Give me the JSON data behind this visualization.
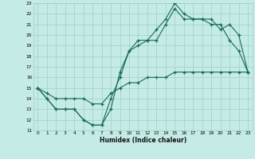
{
  "xlabel": "Humidex (Indice chaleur)",
  "xlim": [
    -0.5,
    23.5
  ],
  "ylim": [
    11,
    23
  ],
  "xticks": [
    0,
    1,
    2,
    3,
    4,
    5,
    6,
    7,
    8,
    9,
    10,
    11,
    12,
    13,
    14,
    15,
    16,
    17,
    18,
    19,
    20,
    21,
    22,
    23
  ],
  "yticks": [
    11,
    12,
    13,
    14,
    15,
    16,
    17,
    18,
    19,
    20,
    21,
    22,
    23
  ],
  "bg_color": "#c5ebe6",
  "grid_color": "#9dcdc8",
  "line_color": "#1a6b5a",
  "line1_x": [
    0,
    1,
    2,
    3,
    4,
    5,
    6,
    7,
    8,
    9,
    10,
    11,
    12,
    13,
    14,
    15,
    16,
    17,
    18,
    19,
    20,
    21,
    22,
    23
  ],
  "line1_y": [
    15,
    14,
    13,
    13,
    13,
    12,
    11.5,
    11.5,
    13,
    16.5,
    18.5,
    19.5,
    19.5,
    20.5,
    21.5,
    23,
    22,
    21.5,
    21.5,
    21,
    21,
    19.5,
    18.5,
    16.5
  ],
  "line2_x": [
    0,
    1,
    2,
    3,
    4,
    5,
    6,
    7,
    8,
    9,
    10,
    11,
    12,
    13,
    14,
    15,
    16,
    17,
    18,
    19,
    20,
    21,
    22,
    23
  ],
  "line2_y": [
    15,
    14,
    13,
    13,
    13,
    12,
    11.5,
    11.5,
    14,
    16,
    18.5,
    19,
    19.5,
    19.5,
    21,
    22.5,
    21.5,
    21.5,
    21.5,
    21.5,
    20.5,
    21,
    20,
    16.5
  ],
  "line3_x": [
    0,
    1,
    2,
    3,
    4,
    5,
    6,
    7,
    8,
    9,
    10,
    11,
    12,
    13,
    14,
    15,
    16,
    17,
    18,
    19,
    20,
    21,
    22,
    23
  ],
  "line3_y": [
    15,
    14.5,
    14,
    14,
    14,
    14,
    13.5,
    13.5,
    14.5,
    15,
    15.5,
    15.5,
    16,
    16,
    16,
    16.5,
    16.5,
    16.5,
    16.5,
    16.5,
    16.5,
    16.5,
    16.5,
    16.5
  ]
}
